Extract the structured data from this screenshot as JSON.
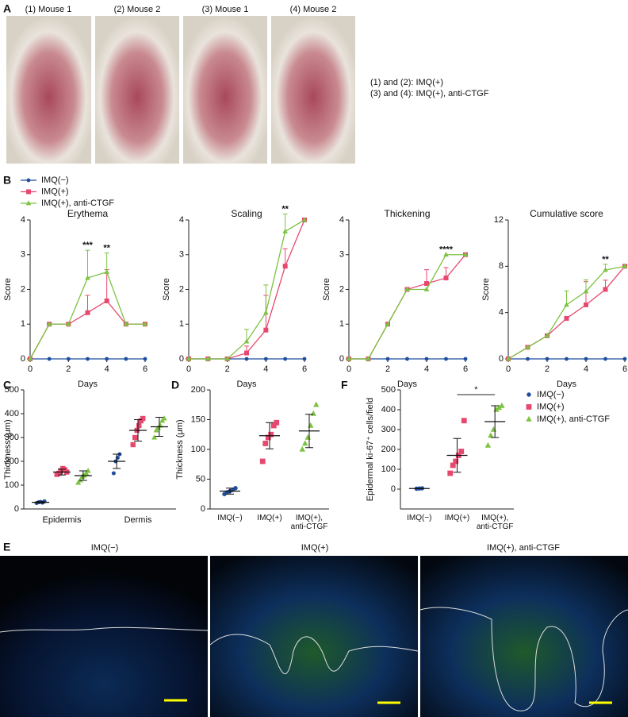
{
  "panel_labels": [
    "A",
    "B",
    "C",
    "D",
    "E",
    "F"
  ],
  "panel_a": {
    "photo_labels": [
      "(1) Mouse 1",
      "(2) Mouse 2",
      "(3) Mouse 1",
      "(4) Mouse 2"
    ],
    "legend": [
      "(1) and (2): IMQ(+)",
      "(3) and (4): IMQ(+), anti-CTGF"
    ]
  },
  "panel_e": {
    "labels": [
      "IMQ(−)",
      "IMQ(+)",
      "IMQ(+), anti-CTGF"
    ]
  },
  "chart_data": [
    {
      "type": "line",
      "title": "Erythema",
      "x_label": "Days",
      "y_label": "Score",
      "x": [
        0,
        1,
        2,
        3,
        4,
        5,
        6
      ],
      "xlim": [
        0,
        6
      ],
      "xticks": [
        0,
        2,
        4,
        6
      ],
      "ylim": [
        0,
        4
      ],
      "yticks": [
        0,
        1,
        2,
        3,
        4
      ],
      "series": [
        {
          "name": "IMQ(−)",
          "color": "#1f4e9c",
          "marker": "circle",
          "values": [
            0,
            0,
            0,
            0,
            0,
            0,
            0
          ]
        },
        {
          "name": "IMQ(+)",
          "color": "#e8476e",
          "marker": "square",
          "values": [
            0,
            1,
            1,
            1.33,
            1.67,
            1,
            1
          ],
          "errors": [
            null,
            null,
            null,
            0.5,
            0.9,
            null,
            null
          ]
        },
        {
          "name": "IMQ(+), anti-CTGF",
          "color": "#7dc242",
          "marker": "triangle",
          "values": [
            0,
            1,
            1,
            2.33,
            2.5,
            1,
            1
          ],
          "errors": [
            null,
            null,
            null,
            0.8,
            0.55,
            null,
            null
          ]
        }
      ],
      "annotations": [
        {
          "x": 3,
          "text": "***"
        },
        {
          "x": 4,
          "text": "**"
        }
      ]
    },
    {
      "type": "line",
      "title": "Scaling",
      "x_label": "Days",
      "y_label": "Score",
      "x": [
        0,
        1,
        2,
        3,
        4,
        5,
        6
      ],
      "xlim": [
        0,
        6
      ],
      "xticks": [
        0,
        2,
        4,
        6
      ],
      "ylim": [
        0,
        4
      ],
      "yticks": [
        0,
        1,
        2,
        3,
        4
      ],
      "series": [
        {
          "name": "IMQ(−)",
          "color": "#1f4e9c",
          "marker": "circle",
          "values": [
            0,
            0,
            0,
            0,
            0,
            0,
            0
          ]
        },
        {
          "name": "IMQ(+)",
          "color": "#e8476e",
          "marker": "square",
          "values": [
            0,
            0,
            0,
            0.17,
            0.83,
            2.67,
            4
          ],
          "errors": [
            null,
            null,
            null,
            0.2,
            1.0,
            0.5,
            null
          ]
        },
        {
          "name": "IMQ(+), anti-CTGF",
          "color": "#7dc242",
          "marker": "triangle",
          "values": [
            0,
            0,
            0,
            0.5,
            1.33,
            3.67,
            4
          ],
          "errors": [
            null,
            null,
            null,
            0.35,
            0.8,
            0.5,
            null
          ]
        }
      ],
      "annotations": [
        {
          "x": 5,
          "text": "**"
        }
      ]
    },
    {
      "type": "line",
      "title": "Thickening",
      "x_label": "Days",
      "y_label": "Score",
      "x": [
        0,
        1,
        2,
        3,
        4,
        5,
        6
      ],
      "xlim": [
        0,
        6
      ],
      "xticks": [
        0,
        2,
        4,
        6
      ],
      "ylim": [
        0,
        4
      ],
      "yticks": [
        0,
        1,
        2,
        3,
        4
      ],
      "series": [
        {
          "name": "IMQ(−)",
          "color": "#1f4e9c",
          "marker": "circle",
          "values": [
            0,
            0,
            0,
            0,
            0,
            0,
            0
          ]
        },
        {
          "name": "IMQ(+)",
          "color": "#e8476e",
          "marker": "square",
          "values": [
            0,
            0,
            1,
            2,
            2.17,
            2.33,
            3
          ],
          "errors": [
            null,
            null,
            null,
            null,
            0.4,
            0.3,
            null
          ]
        },
        {
          "name": "IMQ(+), anti-CTGF",
          "color": "#7dc242",
          "marker": "triangle",
          "values": [
            0,
            0,
            1,
            2,
            2,
            3,
            3
          ],
          "errors": [
            null,
            null,
            null,
            null,
            null,
            null,
            null
          ]
        }
      ],
      "annotations": [
        {
          "x": 5,
          "text": "****"
        }
      ]
    },
    {
      "type": "line",
      "title": "Cumulative score",
      "x_label": "Days",
      "y_label": "Score",
      "x": [
        0,
        1,
        2,
        3,
        4,
        5,
        6
      ],
      "xlim": [
        0,
        6
      ],
      "xticks": [
        0,
        2,
        4,
        6
      ],
      "ylim": [
        0,
        12
      ],
      "yticks": [
        0,
        4,
        8,
        12
      ],
      "series": [
        {
          "name": "IMQ(−)",
          "color": "#1f4e9c",
          "marker": "circle",
          "values": [
            0,
            0,
            0,
            0,
            0,
            0,
            0
          ]
        },
        {
          "name": "IMQ(+)",
          "color": "#e8476e",
          "marker": "square",
          "values": [
            0,
            1,
            2,
            3.5,
            4.67,
            6,
            8
          ],
          "errors": [
            null,
            null,
            null,
            null,
            2.0,
            0.8,
            null
          ]
        },
        {
          "name": "IMQ(+), anti-CTGF",
          "color": "#7dc242",
          "marker": "triangle",
          "values": [
            0,
            1,
            2,
            4.67,
            5.83,
            7.67,
            8
          ],
          "errors": [
            null,
            null,
            null,
            1.2,
            1.0,
            0.5,
            null
          ]
        }
      ],
      "annotations": [
        {
          "x": 5,
          "text": "**"
        }
      ]
    },
    {
      "type": "grouped_strip",
      "y_label": "Thickness (μm)",
      "categories": [
        "Epidermis",
        "Dermis"
      ],
      "ylim": [
        0,
        500
      ],
      "yticks": [
        0,
        100,
        200,
        300,
        400,
        500
      ],
      "series": [
        {
          "name": "IMQ(−)",
          "color": "#1f4e9c",
          "marker": "circle",
          "points": [
            [
              25,
              28,
              30,
              27,
              32
            ],
            [
              150,
              200,
              215,
              230
            ]
          ],
          "mean": [
            28,
            200
          ],
          "sd": [
            3,
            30
          ]
        },
        {
          "name": "IMQ(+)",
          "color": "#e8476e",
          "marker": "square",
          "points": [
            [
              145,
              150,
              160,
              170,
              165,
              155
            ],
            [
              270,
              300,
              330,
              350,
              370,
              380
            ]
          ],
          "mean": [
            155,
            330
          ],
          "sd": [
            12,
            45
          ]
        },
        {
          "name": "IMQ(+), anti-CTGF",
          "color": "#7dc242",
          "marker": "triangle",
          "points": [
            [
              110,
              120,
              135,
              140,
              150,
              160
            ],
            [
              300,
              330,
              340,
              350,
              370,
              380
            ]
          ],
          "mean": [
            140,
            345
          ],
          "sd": [
            20,
            40
          ]
        }
      ]
    },
    {
      "type": "strip",
      "y_label": "Thickness (μm)",
      "ylim": [
        0,
        200
      ],
      "yticks": [
        0,
        50,
        100,
        150,
        200
      ],
      "groups": [
        {
          "name": "IMQ(−)",
          "color": "#1f4e9c",
          "marker": "circle",
          "points": [
            25,
            28,
            30,
            32,
            35
          ],
          "mean": 30,
          "sd": 5
        },
        {
          "name": "IMQ(+)",
          "color": "#e8476e",
          "marker": "square",
          "points": [
            80,
            110,
            120,
            125,
            140,
            145
          ],
          "mean": 123,
          "sd": 22
        },
        {
          "name": "IMQ(+), anti-CTGF",
          "color": "#7dc242",
          "marker": "triangle",
          "points": [
            100,
            110,
            120,
            140,
            160,
            175
          ],
          "mean": 131,
          "sd": 28
        }
      ]
    },
    {
      "type": "strip",
      "y_label": "Epidermal ki-67⁺ cells/field",
      "ylim": [
        -100,
        500
      ],
      "yticks": [
        0,
        100,
        200,
        300,
        400,
        500
      ],
      "groups": [
        {
          "name": "IMQ(−)",
          "color": "#1f4e9c",
          "marker": "circle",
          "points": [
            2,
            3,
            4
          ],
          "mean": 3,
          "sd": 1
        },
        {
          "name": "IMQ(+)",
          "color": "#e8476e",
          "marker": "square",
          "points": [
            80,
            120,
            140,
            170,
            190,
            345
          ],
          "mean": 170,
          "sd": 85
        },
        {
          "name": "IMQ(+), anti-CTGF",
          "color": "#7dc242",
          "marker": "triangle",
          "points": [
            220,
            270,
            300,
            400,
            410,
            420
          ],
          "mean": 340,
          "sd": 80
        }
      ],
      "annotation": "*"
    }
  ]
}
